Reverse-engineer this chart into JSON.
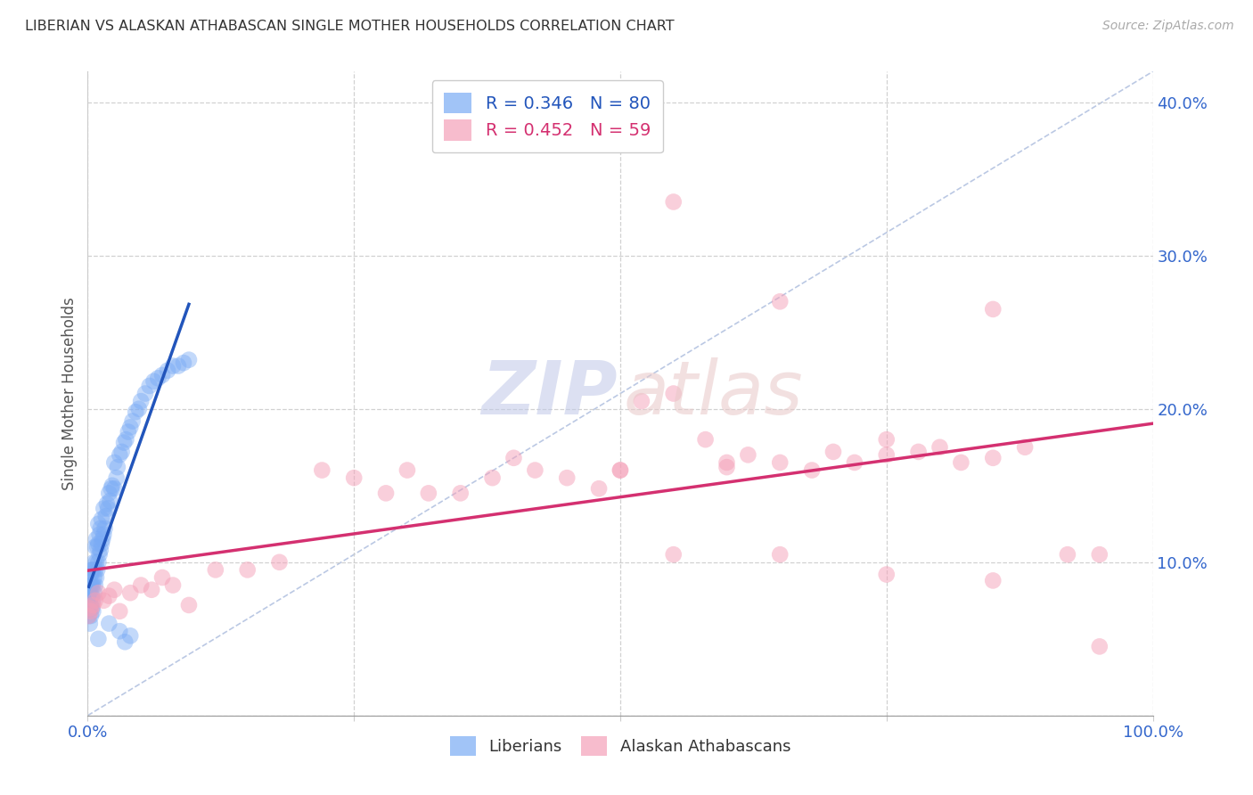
{
  "title": "LIBERIAN VS ALASKAN ATHABASCAN SINGLE MOTHER HOUSEHOLDS CORRELATION CHART",
  "source": "Source: ZipAtlas.com",
  "ylabel": "Single Mother Households",
  "xlim": [
    0.0,
    1.0
  ],
  "ylim": [
    0.0,
    0.42
  ],
  "liberian_R": 0.346,
  "liberian_N": 80,
  "athabascan_R": 0.452,
  "athabascan_N": 59,
  "liberian_color": "#7aabf5",
  "athabascan_color": "#f5a0b8",
  "liberian_line_color": "#2255bb",
  "athabascan_line_color": "#d43070",
  "grid_color": "#cccccc",
  "title_color": "#333333",
  "tick_color": "#3366cc",
  "watermark_zip_color": "#c0c8e8",
  "watermark_atlas_color": "#e8c8c8",
  "legend_label_1": "R = 0.346   N = 80",
  "legend_label_2": "R = 0.452   N = 59",
  "series_label_1": "Liberians",
  "series_label_2": "Alaskan Athabascans",
  "lib_x": [
    0.001,
    0.001,
    0.001,
    0.002,
    0.002,
    0.002,
    0.002,
    0.003,
    0.003,
    0.003,
    0.003,
    0.003,
    0.004,
    0.004,
    0.004,
    0.004,
    0.005,
    0.005,
    0.005,
    0.005,
    0.006,
    0.006,
    0.006,
    0.007,
    0.007,
    0.007,
    0.008,
    0.008,
    0.008,
    0.009,
    0.009,
    0.01,
    0.01,
    0.01,
    0.011,
    0.011,
    0.012,
    0.012,
    0.013,
    0.013,
    0.014,
    0.015,
    0.015,
    0.016,
    0.017,
    0.018,
    0.019,
    0.02,
    0.021,
    0.022,
    0.023,
    0.025,
    0.025,
    0.027,
    0.028,
    0.03,
    0.032,
    0.034,
    0.036,
    0.038,
    0.04,
    0.042,
    0.045,
    0.048,
    0.05,
    0.054,
    0.058,
    0.062,
    0.066,
    0.07,
    0.075,
    0.08,
    0.085,
    0.09,
    0.095,
    0.01,
    0.02,
    0.03,
    0.035,
    0.04
  ],
  "lib_y": [
    0.065,
    0.075,
    0.08,
    0.06,
    0.07,
    0.075,
    0.085,
    0.065,
    0.072,
    0.078,
    0.085,
    0.092,
    0.07,
    0.078,
    0.085,
    0.095,
    0.068,
    0.075,
    0.085,
    0.095,
    0.08,
    0.09,
    0.1,
    0.085,
    0.095,
    0.11,
    0.09,
    0.1,
    0.115,
    0.095,
    0.11,
    0.1,
    0.112,
    0.125,
    0.105,
    0.118,
    0.108,
    0.122,
    0.112,
    0.128,
    0.115,
    0.118,
    0.135,
    0.122,
    0.13,
    0.138,
    0.135,
    0.145,
    0.14,
    0.148,
    0.15,
    0.148,
    0.165,
    0.155,
    0.162,
    0.17,
    0.172,
    0.178,
    0.18,
    0.185,
    0.188,
    0.192,
    0.198,
    0.2,
    0.205,
    0.21,
    0.215,
    0.218,
    0.22,
    0.222,
    0.225,
    0.228,
    0.228,
    0.23,
    0.232,
    0.05,
    0.06,
    0.055,
    0.048,
    0.052
  ],
  "ath_x": [
    0.001,
    0.002,
    0.003,
    0.005,
    0.007,
    0.01,
    0.015,
    0.02,
    0.025,
    0.03,
    0.04,
    0.05,
    0.06,
    0.07,
    0.08,
    0.095,
    0.12,
    0.15,
    0.18,
    0.22,
    0.25,
    0.28,
    0.32,
    0.35,
    0.38,
    0.42,
    0.45,
    0.48,
    0.52,
    0.55,
    0.58,
    0.62,
    0.65,
    0.68,
    0.72,
    0.75,
    0.78,
    0.82,
    0.85,
    0.88,
    0.92,
    0.95,
    0.3,
    0.4,
    0.5,
    0.6,
    0.7,
    0.8,
    0.55,
    0.65,
    0.75,
    0.85,
    0.55,
    0.65,
    0.75,
    0.85,
    0.95,
    0.5,
    0.6
  ],
  "ath_y": [
    0.065,
    0.07,
    0.068,
    0.072,
    0.075,
    0.08,
    0.075,
    0.078,
    0.082,
    0.068,
    0.08,
    0.085,
    0.082,
    0.09,
    0.085,
    0.072,
    0.095,
    0.095,
    0.1,
    0.16,
    0.155,
    0.145,
    0.145,
    0.145,
    0.155,
    0.16,
    0.155,
    0.148,
    0.205,
    0.21,
    0.18,
    0.17,
    0.165,
    0.16,
    0.165,
    0.17,
    0.172,
    0.165,
    0.168,
    0.175,
    0.105,
    0.105,
    0.16,
    0.168,
    0.16,
    0.162,
    0.172,
    0.175,
    0.335,
    0.27,
    0.18,
    0.265,
    0.105,
    0.105,
    0.092,
    0.088,
    0.045,
    0.16,
    0.165
  ]
}
